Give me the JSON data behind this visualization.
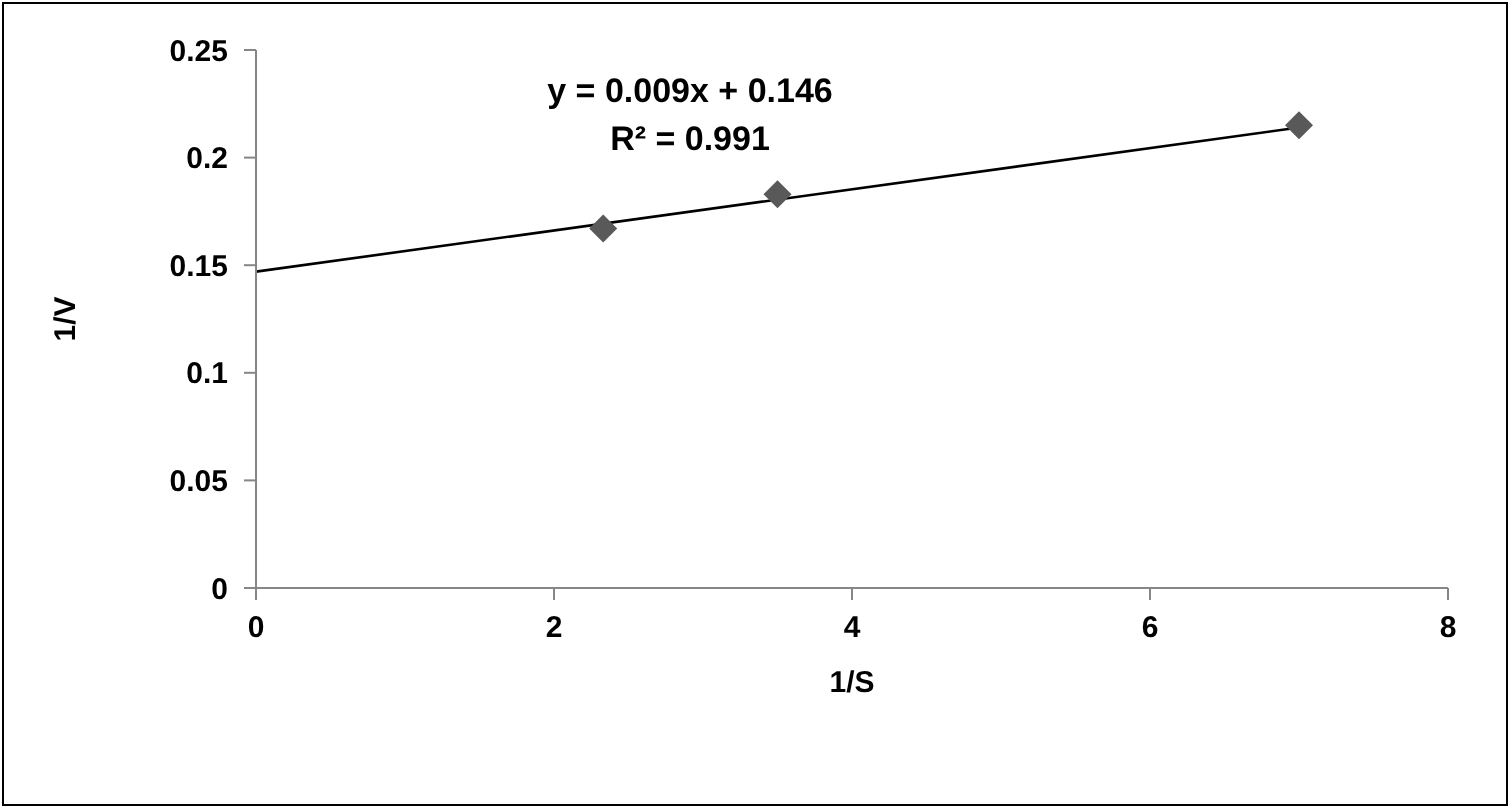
{
  "chart_data": {
    "type": "scatter",
    "xlabel": "1/S",
    "ylabel": "1/V",
    "x": [
      2.33,
      3.5,
      7
    ],
    "series": [
      {
        "color": "#595959",
        "values": [
          0.167,
          0.183,
          0.215
        ],
        "marker": "diamond"
      },
      {
        "type": "line",
        "color": "#000000",
        "x": [
          0,
          7
        ],
        "values": [
          0.147,
          0.214
        ],
        "marker": "none"
      }
    ],
    "xlim": [
      0,
      8
    ],
    "xticks": [
      0,
      2,
      4,
      6,
      8
    ],
    "ylim": [
      0,
      0.25
    ],
    "yticks": [
      0,
      0.05,
      0.1,
      0.15,
      0.2,
      0.25
    ],
    "annotations": [
      "y = 0.009x + 0.146",
      "R² = 0.991"
    ],
    "grid": false,
    "legend": false
  }
}
